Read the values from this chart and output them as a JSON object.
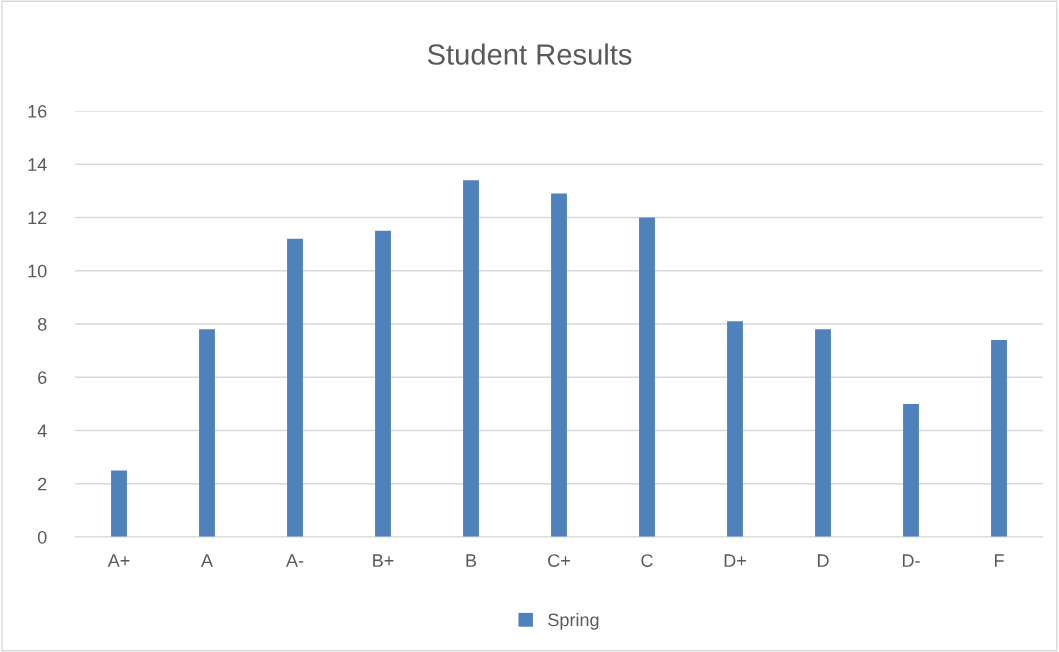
{
  "chart_data": {
    "type": "bar",
    "title": "Student Results",
    "categories": [
      "A+",
      "A",
      "A-",
      "B+",
      "B",
      "C+",
      "C",
      "D+",
      "D",
      "D-",
      "F"
    ],
    "series": [
      {
        "name": "Spring",
        "color": "#4f81bd",
        "values": [
          2.5,
          7.8,
          11.2,
          11.5,
          13.4,
          12.9,
          12.0,
          8.1,
          7.8,
          5.0,
          7.4
        ]
      }
    ],
    "ylim": [
      0,
      16
    ],
    "yticks": [
      0,
      2,
      4,
      6,
      8,
      10,
      12,
      14,
      16
    ],
    "grid": "y",
    "legend": "bottom"
  }
}
